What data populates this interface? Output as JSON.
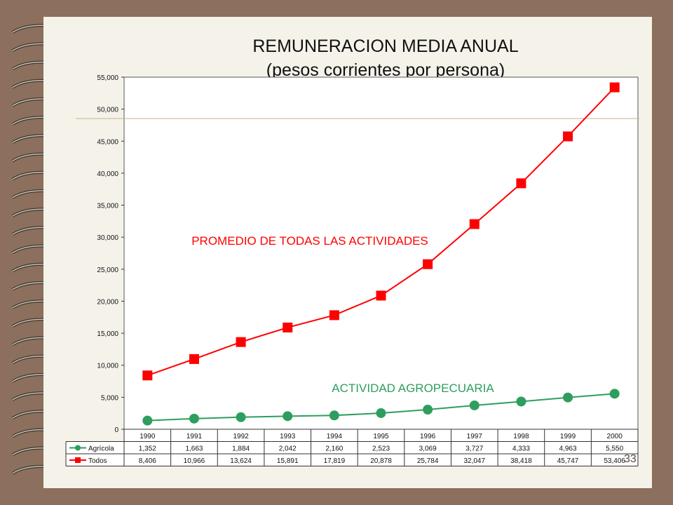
{
  "title_line1": "REMUNERACION MEDIA ANUAL",
  "title_line2": "(pesos corrientes por persona)",
  "slide_number": "33",
  "colors": {
    "todos": "#ff0000",
    "agricola": "#2e9e5e",
    "background": "#f5f2ea",
    "frame": "#8c6f5c"
  },
  "chart_data": {
    "type": "line",
    "categories": [
      "1990",
      "1991",
      "1992",
      "1993",
      "1994",
      "1995",
      "1996",
      "1997",
      "1998",
      "1999",
      "2000"
    ],
    "series": [
      {
        "name": "Agrícola",
        "values": [
          1352,
          1663,
          1884,
          2042,
          2160,
          2523,
          3069,
          3727,
          4333,
          4963,
          5550
        ],
        "value_labels": [
          "1,352",
          "1,663",
          "1,884",
          "2,042",
          "2,160",
          "2,523",
          "3,069",
          "3,727",
          "4,333",
          "4,963",
          "5,550"
        ]
      },
      {
        "name": "Todos",
        "values": [
          8406,
          10966,
          13624,
          15891,
          17819,
          20878,
          25784,
          32047,
          38418,
          45747,
          53406
        ],
        "value_labels": [
          "8,406",
          "10,966",
          "13,624",
          "15,891",
          "17,819",
          "20,878",
          "25,784",
          "32,047",
          "38,418",
          "45,747",
          "53,406"
        ]
      }
    ],
    "ylim": [
      0,
      55000
    ],
    "yticks": [
      0,
      5000,
      10000,
      15000,
      20000,
      25000,
      30000,
      35000,
      40000,
      45000,
      50000,
      55000
    ],
    "ytick_labels": [
      "0",
      "5,000",
      "10,000",
      "15,000",
      "20,000",
      "25,000",
      "30,000",
      "35,000",
      "40,000",
      "45,000",
      "50,000",
      "55,000"
    ],
    "annotations": {
      "todos": "PROMEDIO DE TODAS LAS ACTIVIDADES",
      "agricola": "ACTIVIDAD AGROPECUARIA"
    },
    "legend": "data-table below chart"
  }
}
